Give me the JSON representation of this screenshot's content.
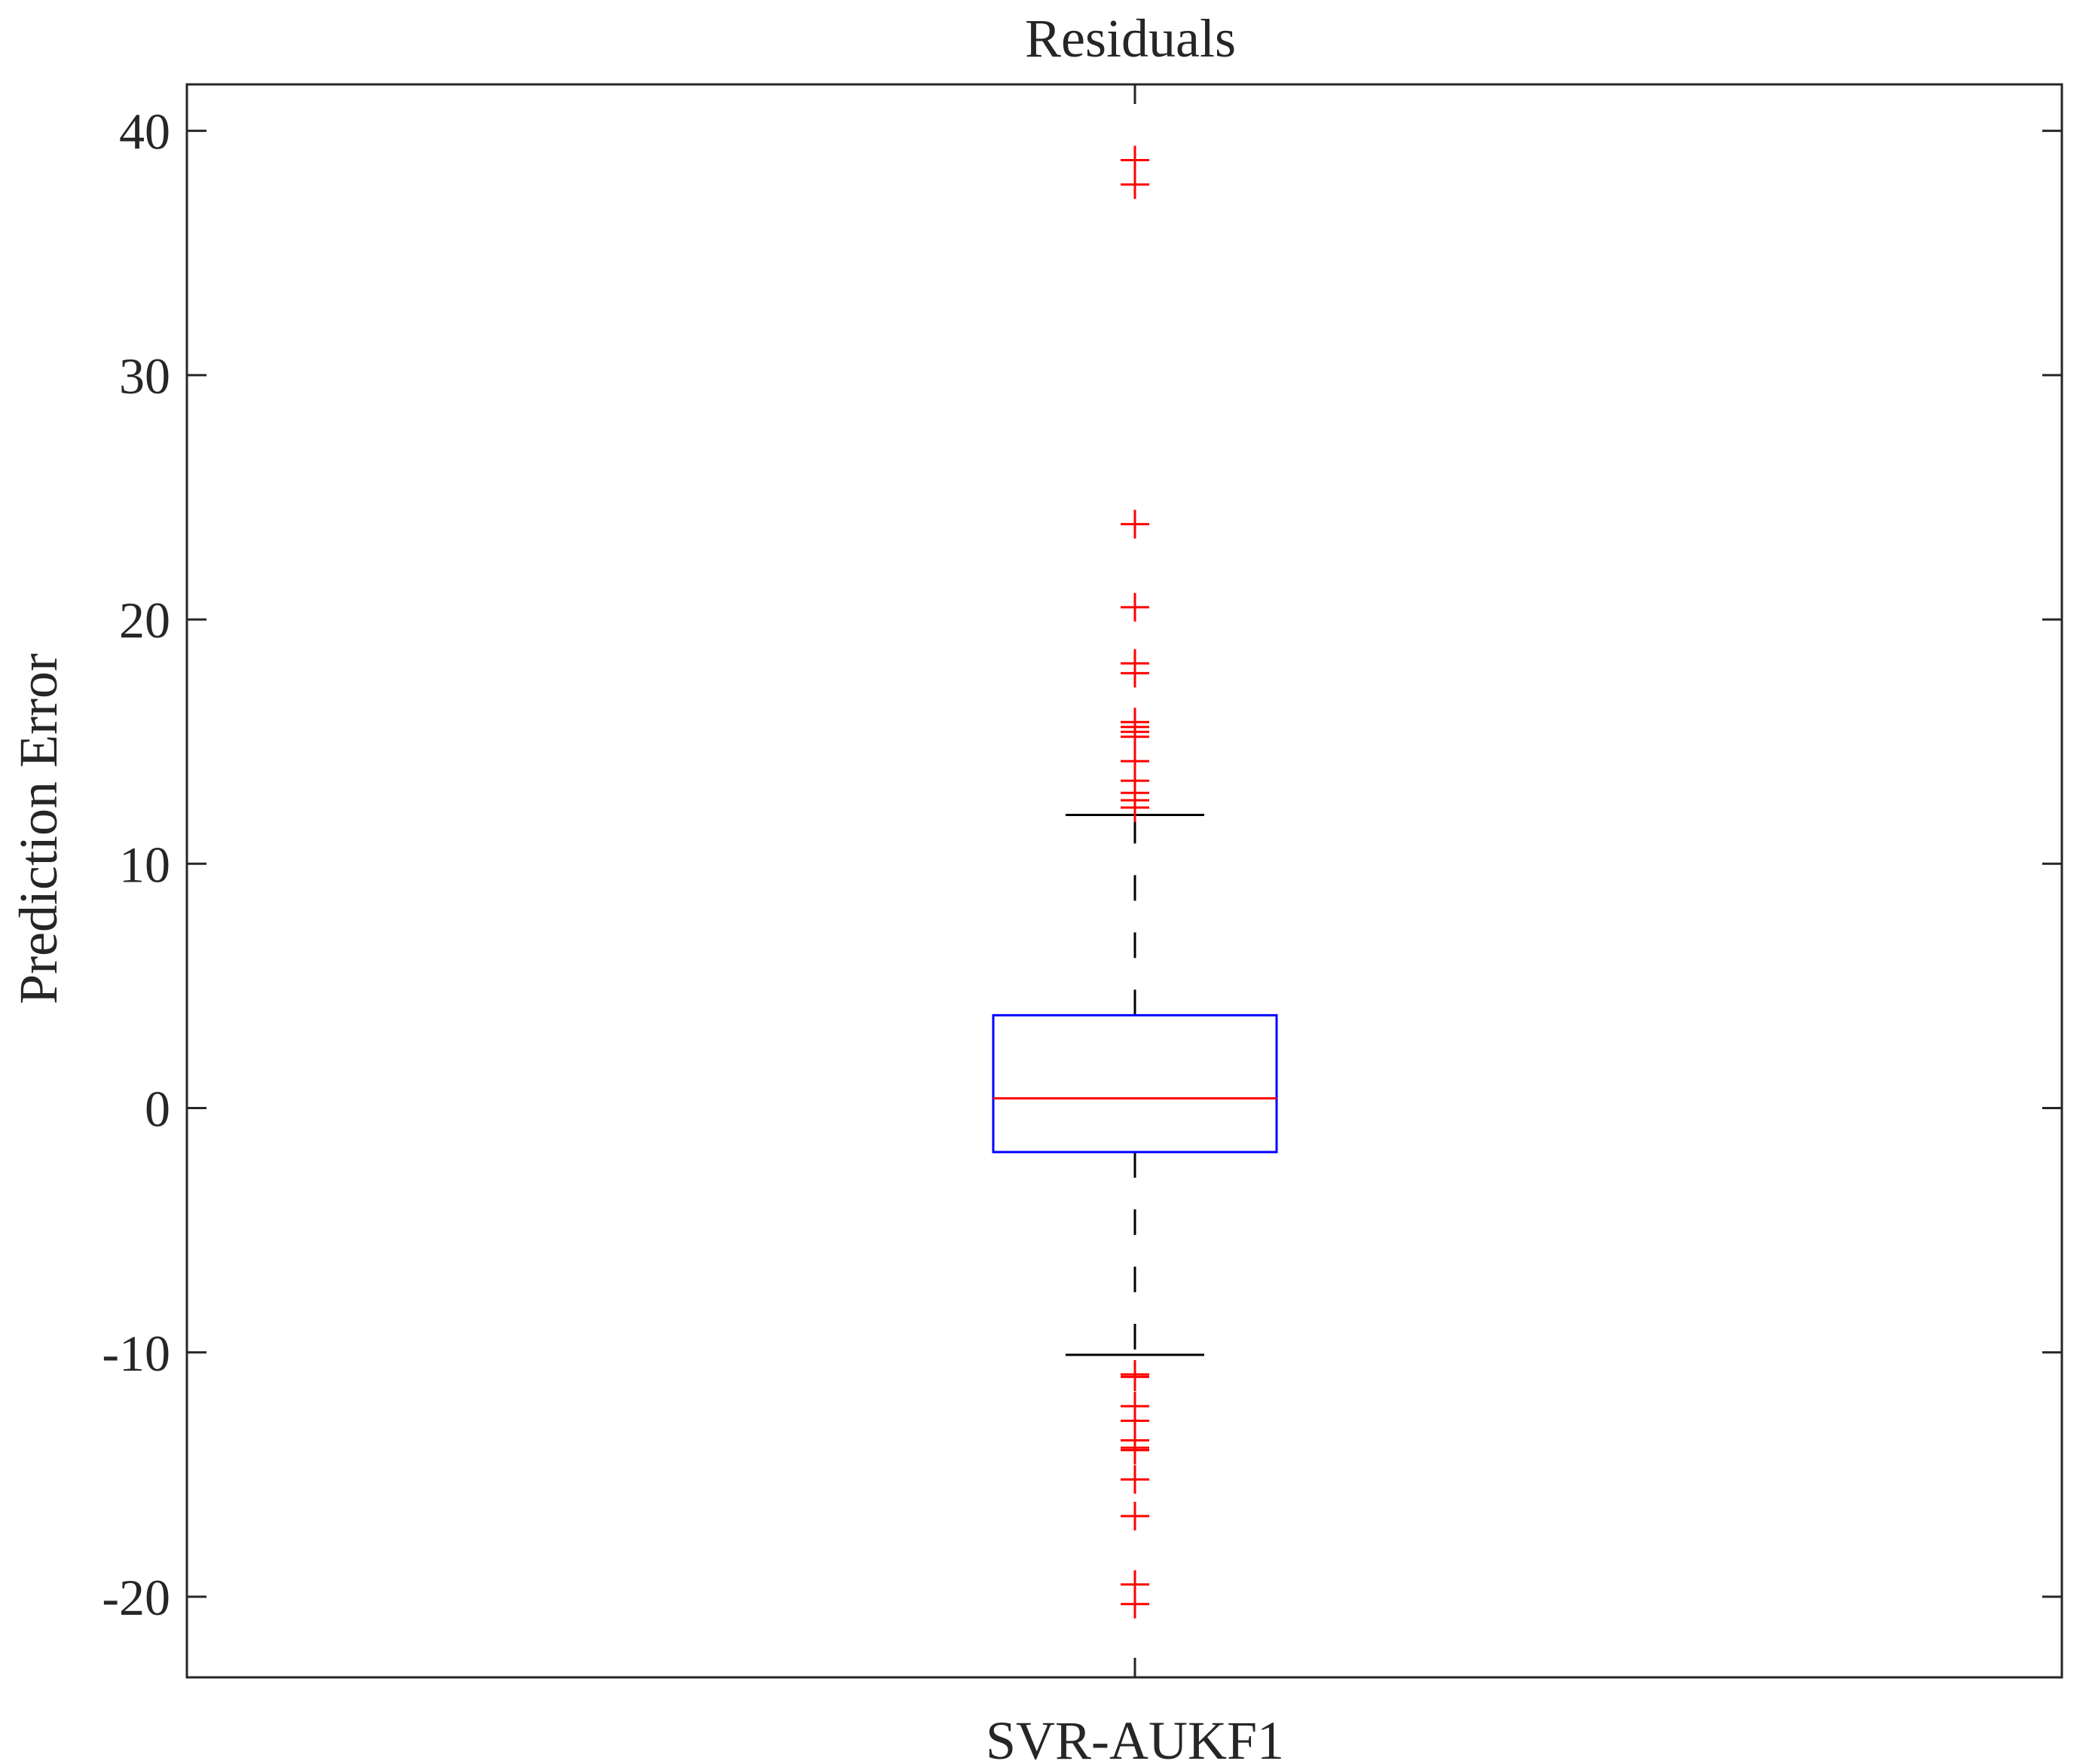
{
  "chart_data": {
    "type": "box",
    "title": "Residuals",
    "xlabel": "",
    "ylabel": "Prediction Error",
    "categories": [
      "SVR-AUKF1"
    ],
    "ylim": [
      -23.3,
      41.9
    ],
    "yticks": [
      -20,
      -10,
      0,
      10,
      20,
      30,
      40
    ],
    "ytick_labels": [
      "-20",
      "-10",
      "0",
      "10",
      "20",
      "30",
      "40"
    ],
    "grid": false,
    "legend": "none",
    "boxes": [
      {
        "name": "SVR-AUKF1",
        "q1": -1.8,
        "median": 0.4,
        "q3": 3.8,
        "whisker_low": -10.1,
        "whisker_high": 12.0,
        "outliers": [
          38.8,
          37.8,
          23.9,
          20.5,
          18.2,
          17.8,
          15.8,
          15.6,
          15.4,
          15.2,
          14.2,
          13.4,
          12.9,
          12.6,
          12.3,
          -10.9,
          -11.0,
          -12.2,
          -12.8,
          -13.6,
          -13.9,
          -14.0,
          -15.2,
          -16.7,
          -19.5,
          -20.3
        ]
      }
    ],
    "colors": {
      "box": "#0000ff",
      "median": "#ff0000",
      "whisker": "#000000",
      "outlier": "#ff0000",
      "axis": "#262626"
    }
  }
}
